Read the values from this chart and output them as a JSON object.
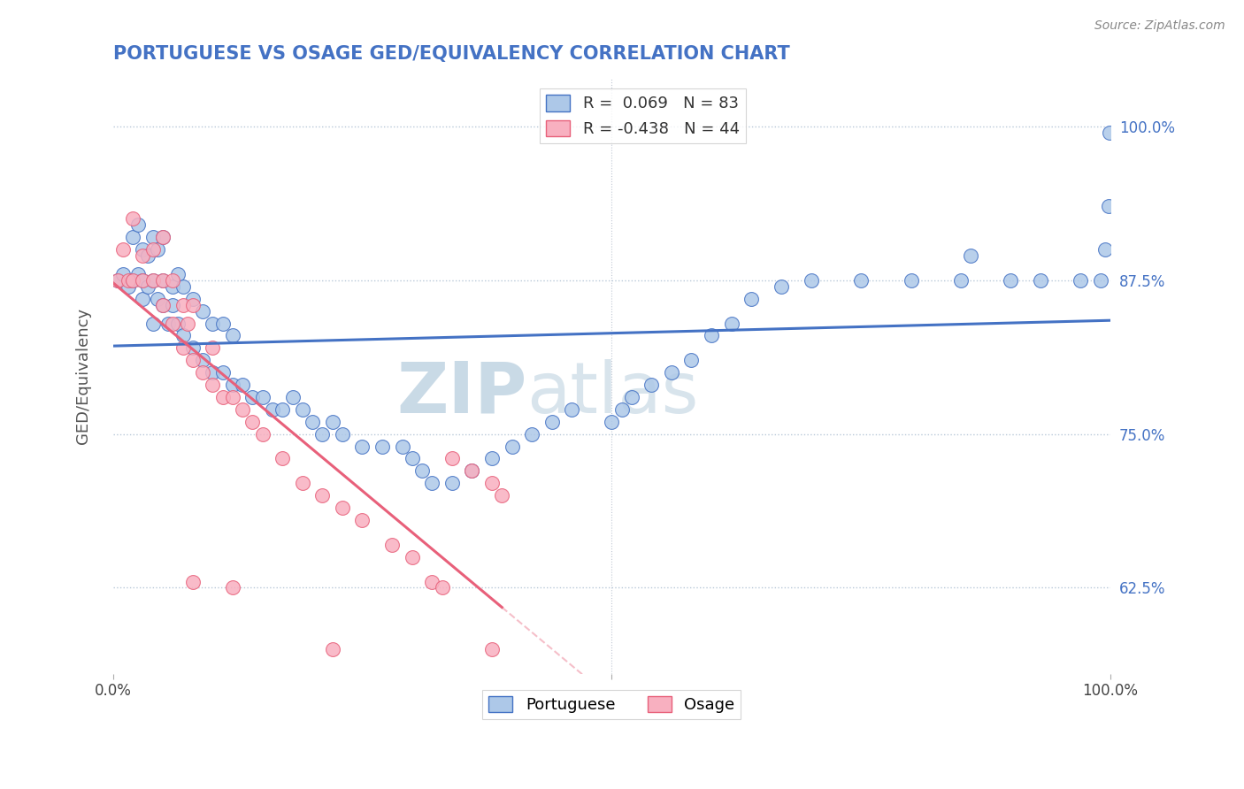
{
  "title": "PORTUGUESE VS OSAGE GED/EQUIVALENCY CORRELATION CHART",
  "source": "Source: ZipAtlas.com",
  "ylabel": "GED/Equivalency",
  "yticks": [
    "62.5%",
    "75.0%",
    "87.5%",
    "100.0%"
  ],
  "ytick_vals": [
    0.625,
    0.75,
    0.875,
    1.0
  ],
  "xlim": [
    0.0,
    1.0
  ],
  "ylim": [
    0.555,
    1.04
  ],
  "r_portuguese": 0.069,
  "n_portuguese": 83,
  "r_osage": -0.438,
  "n_osage": 44,
  "color_portuguese": "#adc8e8",
  "color_osage": "#f8b0c0",
  "line_color_portuguese": "#4472c4",
  "line_color_osage": "#e8607a",
  "legend_label_portuguese": "Portuguese",
  "legend_label_osage": "Osage",
  "watermark_zip": "ZIP",
  "watermark_atlas": "atlas",
  "watermark_color": "#c8d8ea",
  "portuguese_x": [
    0.005,
    0.01,
    0.015,
    0.02,
    0.02,
    0.025,
    0.025,
    0.03,
    0.03,
    0.03,
    0.035,
    0.035,
    0.04,
    0.04,
    0.04,
    0.045,
    0.045,
    0.05,
    0.05,
    0.05,
    0.055,
    0.06,
    0.06,
    0.065,
    0.065,
    0.07,
    0.07,
    0.08,
    0.08,
    0.09,
    0.09,
    0.1,
    0.1,
    0.11,
    0.11,
    0.12,
    0.12,
    0.13,
    0.14,
    0.15,
    0.16,
    0.17,
    0.18,
    0.19,
    0.2,
    0.21,
    0.22,
    0.23,
    0.25,
    0.27,
    0.29,
    0.3,
    0.31,
    0.32,
    0.34,
    0.36,
    0.38,
    0.4,
    0.42,
    0.44,
    0.46,
    0.5,
    0.51,
    0.52,
    0.54,
    0.56,
    0.58,
    0.6,
    0.62,
    0.64,
    0.67,
    0.7,
    0.75,
    0.8,
    0.85,
    0.86,
    0.9,
    0.93,
    0.97,
    0.99,
    0.995,
    0.998,
    0.999
  ],
  "portuguese_y": [
    0.875,
    0.88,
    0.87,
    0.875,
    0.91,
    0.88,
    0.92,
    0.875,
    0.86,
    0.9,
    0.87,
    0.895,
    0.84,
    0.875,
    0.91,
    0.86,
    0.9,
    0.855,
    0.875,
    0.91,
    0.84,
    0.855,
    0.87,
    0.84,
    0.88,
    0.83,
    0.87,
    0.82,
    0.86,
    0.81,
    0.85,
    0.8,
    0.84,
    0.8,
    0.84,
    0.79,
    0.83,
    0.79,
    0.78,
    0.78,
    0.77,
    0.77,
    0.78,
    0.77,
    0.76,
    0.75,
    0.76,
    0.75,
    0.74,
    0.74,
    0.74,
    0.73,
    0.72,
    0.71,
    0.71,
    0.72,
    0.73,
    0.74,
    0.75,
    0.76,
    0.77,
    0.76,
    0.77,
    0.78,
    0.79,
    0.8,
    0.81,
    0.83,
    0.84,
    0.86,
    0.87,
    0.875,
    0.875,
    0.875,
    0.875,
    0.895,
    0.875,
    0.875,
    0.875,
    0.875,
    0.9,
    0.935,
    0.995
  ],
  "osage_x": [
    0.005,
    0.01,
    0.015,
    0.02,
    0.02,
    0.03,
    0.03,
    0.04,
    0.04,
    0.05,
    0.05,
    0.05,
    0.06,
    0.06,
    0.07,
    0.07,
    0.075,
    0.08,
    0.08,
    0.09,
    0.1,
    0.1,
    0.11,
    0.12,
    0.13,
    0.14,
    0.15,
    0.17,
    0.19,
    0.21,
    0.23,
    0.25,
    0.28,
    0.3,
    0.32,
    0.33,
    0.34,
    0.36,
    0.38,
    0.39,
    0.08,
    0.12,
    0.22,
    0.38
  ],
  "osage_y": [
    0.875,
    0.9,
    0.875,
    0.925,
    0.875,
    0.895,
    0.875,
    0.875,
    0.9,
    0.855,
    0.875,
    0.91,
    0.84,
    0.875,
    0.82,
    0.855,
    0.84,
    0.81,
    0.855,
    0.8,
    0.79,
    0.82,
    0.78,
    0.78,
    0.77,
    0.76,
    0.75,
    0.73,
    0.71,
    0.7,
    0.69,
    0.68,
    0.66,
    0.65,
    0.63,
    0.625,
    0.73,
    0.72,
    0.71,
    0.7,
    0.63,
    0.625,
    0.575,
    0.575
  ]
}
